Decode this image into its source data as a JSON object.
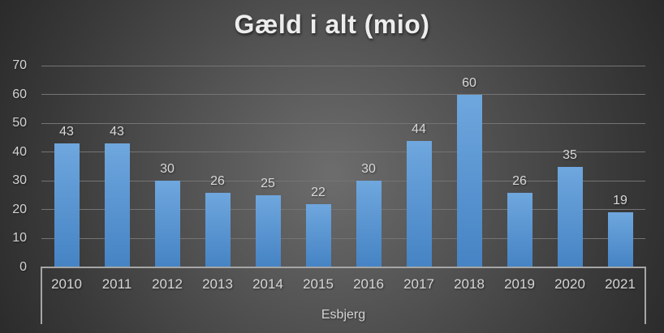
{
  "colors": {
    "background_center": "#6d6d6d",
    "background_edge": "#242424",
    "bar_top": "#6fa7de",
    "bar_bottom": "#4583c4",
    "gridline": "#747474",
    "axis": "#a6a6a6",
    "label_text": "#d9d9d9",
    "title_text": "#ededed"
  },
  "chart_data": {
    "type": "bar",
    "title": "Gæld i alt (mio)",
    "categories": [
      "2010",
      "2011",
      "2012",
      "2013",
      "2014",
      "2015",
      "2016",
      "2017",
      "2018",
      "2019",
      "2020",
      "2021"
    ],
    "values": [
      43,
      43,
      30,
      26,
      25,
      22,
      30,
      44,
      60,
      26,
      35,
      19
    ],
    "data_labels": [
      "43",
      "43",
      "30",
      "26",
      "25",
      "22",
      "30",
      "44",
      "60",
      "26",
      "35",
      "19"
    ],
    "xlabel": "Esbjerg",
    "ylabel": "",
    "yticks": [
      0,
      10,
      20,
      30,
      40,
      50,
      60,
      70
    ],
    "ylim": [
      0,
      70
    ],
    "grid": true,
    "legend": false,
    "series_name": "Gæld i alt (mio)"
  }
}
